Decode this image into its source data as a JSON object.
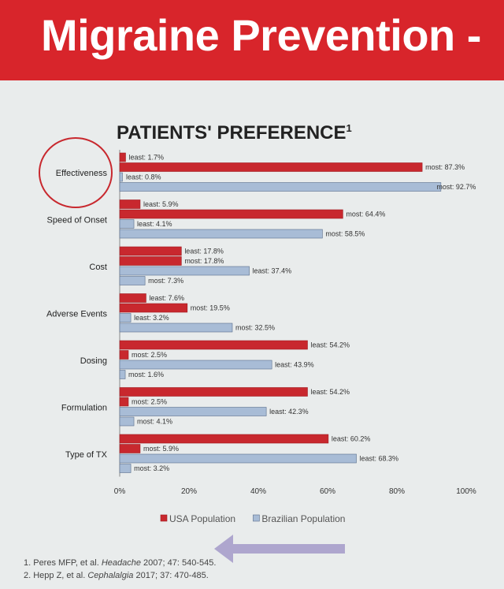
{
  "header": {
    "title": "Migraine Prevention -"
  },
  "chart_data": {
    "type": "bar",
    "orientation": "horizontal",
    "title": "PATIENTS' PREFERENCE",
    "title_superscript": "1",
    "categories": [
      "Effectiveness",
      "Speed of Onset",
      "Cost",
      "Adverse Events",
      "Dosing",
      "Formulation",
      "Type of TX"
    ],
    "highlighted_category": "Effectiveness",
    "xlim": [
      0,
      100
    ],
    "x_ticks": [
      "0%",
      "20%",
      "40%",
      "60%",
      "80%",
      "100%"
    ],
    "series": [
      {
        "name": "USA Population",
        "kind": "least",
        "color": "#c8282e",
        "values": [
          1.7,
          5.9,
          17.8,
          7.6,
          54.2,
          54.2,
          60.2
        ]
      },
      {
        "name": "USA Population",
        "kind": "most",
        "color": "#c8282e",
        "values": [
          87.3,
          64.4,
          17.8,
          19.5,
          2.5,
          2.5,
          5.9
        ]
      },
      {
        "name": "Brazilian Population",
        "kind": "least",
        "color": "#a8bcd6",
        "values": [
          0.8,
          4.1,
          37.4,
          3.2,
          43.9,
          42.3,
          68.3
        ]
      },
      {
        "name": "Brazilian Population",
        "kind": "most",
        "color": "#a8bcd6",
        "values": [
          92.7,
          58.5,
          7.3,
          32.5,
          1.6,
          4.1,
          3.2
        ]
      }
    ],
    "legend": [
      "USA Population",
      "Brazilian Population"
    ],
    "legend_placement": "bottom"
  },
  "footnotes": {
    "ref1": {
      "prefix": "1. Peres MFP, et al. ",
      "journal": "Headache",
      "suffix": " 2007; 47: 540-545."
    },
    "ref2": {
      "prefix": "2. Hepp Z, et al. ",
      "journal": "Cephalalgia",
      "suffix": " 2017; 37: 470-485."
    }
  }
}
